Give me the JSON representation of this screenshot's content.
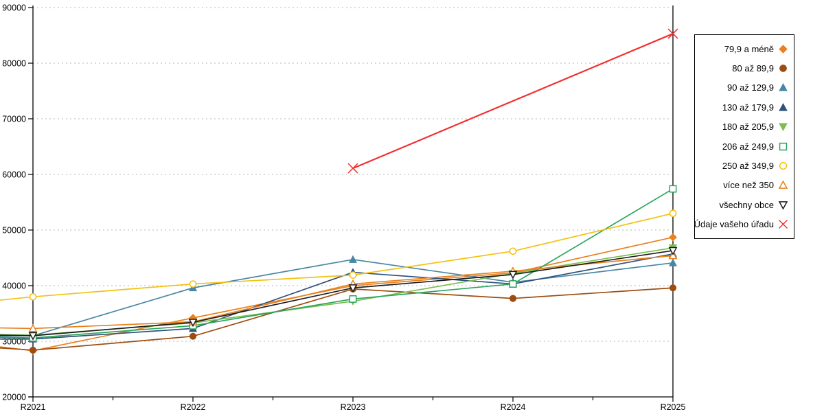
{
  "chart_data": {
    "type": "line",
    "title": "",
    "xlabel": "",
    "ylabel": "",
    "categories": [
      "R2021",
      "R2022",
      "R2023",
      "R2024",
      "R2025"
    ],
    "y_axis": {
      "min": 20000,
      "max": 90000,
      "step": 10000,
      "ticks": [
        "20000",
        "30000",
        "40000",
        "50000",
        "60000",
        "70000",
        "80000",
        "90000"
      ]
    },
    "grid": "horizontal-dotted",
    "legend_position": "right",
    "series": [
      {
        "name": "79,9 a méně",
        "color": "#E8811F",
        "marker": "diamond",
        "fill": "solid",
        "edge_value": 29000,
        "values": [
          28300,
          34200,
          40000,
          42300,
          48700
        ]
      },
      {
        "name": "80 až 89,9",
        "color": "#9D4D10",
        "marker": "circle",
        "fill": "solid",
        "edge_value": 28800,
        "values": [
          28400,
          30900,
          39400,
          37700,
          39600
        ]
      },
      {
        "name": "90 až 129,9",
        "color": "#4886A5",
        "marker": "triangle",
        "fill": "solid",
        "edge_value": 30900,
        "values": [
          31000,
          39600,
          44700,
          40600,
          44100
        ]
      },
      {
        "name": "130 až 179,9",
        "color": "#2F5379",
        "marker": "triangle",
        "fill": "solid",
        "edge_value": 30400,
        "values": [
          30400,
          32300,
          42400,
          40300,
          45700
        ]
      },
      {
        "name": "180 až 205,9",
        "color": "#7CBE4F",
        "marker": "triangle-down",
        "fill": "solid",
        "edge_value": 31200,
        "values": [
          31100,
          33300,
          37200,
          42200,
          46800
        ]
      },
      {
        "name": "206 až 249,9",
        "color": "#2AA55C",
        "marker": "square",
        "fill": "open",
        "edge_value": 30700,
        "values": [
          30600,
          32800,
          37600,
          40300,
          57400
        ]
      },
      {
        "name": "250 až 349,9",
        "color": "#F4C10F",
        "marker": "circle",
        "fill": "open",
        "edge_value": 37400,
        "values": [
          38000,
          40300,
          41900,
          46200,
          53000
        ]
      },
      {
        "name": "více než 350",
        "color": "#E8811F",
        "marker": "triangle",
        "fill": "open",
        "edge_value": 32400,
        "values": [
          32300,
          33500,
          40300,
          42600,
          45400
        ]
      },
      {
        "name": "všechny obce",
        "color": "#1C1C1C",
        "marker": "triangle-down",
        "fill": "open",
        "edge_value": 31100,
        "values": [
          31000,
          33400,
          39600,
          42000,
          46300
        ]
      },
      {
        "name": "Údaje vašeho úřadu",
        "color": "#F23030",
        "marker": "x",
        "fill": "open",
        "edge_value": null,
        "values": [
          null,
          null,
          61100,
          null,
          85300
        ]
      }
    ]
  }
}
